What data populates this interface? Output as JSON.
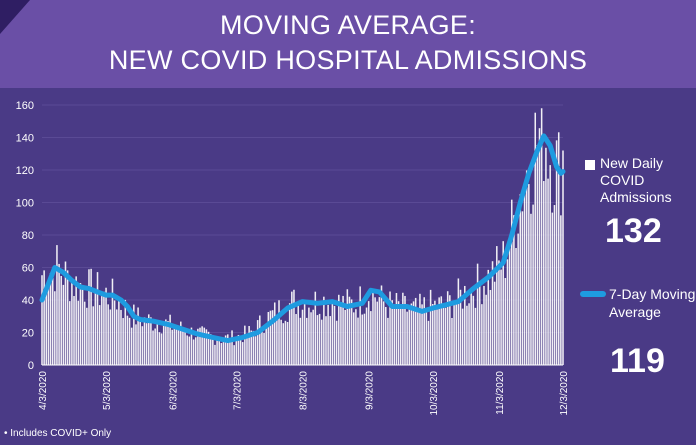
{
  "header": {
    "title_line1": "MOVING AVERAGE:",
    "title_line2": "NEW COVID HOSPITAL ADMISSIONS"
  },
  "legend": {
    "daily_label": [
      "New Daily",
      "COVID",
      "Admissions"
    ],
    "daily_value": "132",
    "avg_label": [
      "7-Day Moving",
      "Average"
    ],
    "avg_value": "119"
  },
  "footnote": "•     Includes COVID+ Only",
  "colors": {
    "bar": "#ffffff",
    "line": "#1e9be0",
    "background": "#4a3a86",
    "header": "#6a4fa6"
  },
  "chart_data": {
    "type": "bar",
    "start_date": "2020-04-03",
    "end_date": "2020-12-03",
    "ylim": [
      0,
      160
    ],
    "yticks": [
      0,
      20,
      40,
      60,
      80,
      100,
      120,
      140,
      160
    ],
    "xtick_labels": [
      "4/3/2020",
      "5/3/2020",
      "6/3/2020",
      "7/3/2020",
      "8/3/2020",
      "9/3/2020",
      "10/3/2020",
      "11/3/2020",
      "12/3/2020"
    ],
    "series": [
      {
        "name": "New Daily COVID Admissions",
        "type": "bar",
        "anchors": [
          [
            "2020-04-03",
            55
          ],
          [
            "2020-04-10",
            60
          ],
          [
            "2020-04-17",
            50
          ],
          [
            "2020-04-24",
            47
          ],
          [
            "2020-05-01",
            44
          ],
          [
            "2020-05-08",
            40
          ],
          [
            "2020-05-15",
            30
          ],
          [
            "2020-05-22",
            27
          ],
          [
            "2020-05-29",
            26
          ],
          [
            "2020-06-05",
            23
          ],
          [
            "2020-06-12",
            20
          ],
          [
            "2020-06-19",
            18
          ],
          [
            "2020-06-26",
            16
          ],
          [
            "2020-07-03",
            17
          ],
          [
            "2020-07-10",
            20
          ],
          [
            "2020-07-17",
            28
          ],
          [
            "2020-07-24",
            34
          ],
          [
            "2020-07-31",
            39
          ],
          [
            "2020-08-07",
            38
          ],
          [
            "2020-08-14",
            39
          ],
          [
            "2020-08-21",
            37
          ],
          [
            "2020-08-28",
            37
          ],
          [
            "2020-09-04",
            45
          ],
          [
            "2020-09-11",
            37
          ],
          [
            "2020-09-18",
            35
          ],
          [
            "2020-09-25",
            33
          ],
          [
            "2020-10-02",
            36
          ],
          [
            "2020-10-09",
            36
          ],
          [
            "2020-10-16",
            42
          ],
          [
            "2020-10-23",
            48
          ],
          [
            "2020-10-30",
            54
          ],
          [
            "2020-11-06",
            65
          ],
          [
            "2020-11-13",
            105
          ],
          [
            "2020-11-20",
            135
          ],
          [
            "2020-11-24",
            145
          ],
          [
            "2020-11-27",
            130
          ],
          [
            "2020-12-01",
            118
          ],
          [
            "2020-12-03",
            132
          ]
        ]
      },
      {
        "name": "7-Day Moving Average",
        "type": "line",
        "points": [
          [
            "2020-04-03",
            40
          ],
          [
            "2020-04-06",
            50
          ],
          [
            "2020-04-09",
            60
          ],
          [
            "2020-04-13",
            57
          ],
          [
            "2020-04-17",
            52
          ],
          [
            "2020-04-21",
            48
          ],
          [
            "2020-04-25",
            47
          ],
          [
            "2020-04-29",
            45
          ],
          [
            "2020-05-03",
            43
          ],
          [
            "2020-05-06",
            43
          ],
          [
            "2020-05-10",
            40
          ],
          [
            "2020-05-13",
            36
          ],
          [
            "2020-05-16",
            30
          ],
          [
            "2020-05-19",
            28
          ],
          [
            "2020-05-25",
            27
          ],
          [
            "2020-06-01",
            25
          ],
          [
            "2020-06-08",
            22
          ],
          [
            "2020-06-15",
            19
          ],
          [
            "2020-06-22",
            17
          ],
          [
            "2020-06-29",
            15
          ],
          [
            "2020-07-06",
            17
          ],
          [
            "2020-07-13",
            20
          ],
          [
            "2020-07-20",
            27
          ],
          [
            "2020-07-27",
            35
          ],
          [
            "2020-08-03",
            39
          ],
          [
            "2020-08-10",
            38
          ],
          [
            "2020-08-17",
            39
          ],
          [
            "2020-08-24",
            36
          ],
          [
            "2020-08-31",
            38
          ],
          [
            "2020-09-04",
            46
          ],
          [
            "2020-09-08",
            45
          ],
          [
            "2020-09-14",
            36
          ],
          [
            "2020-09-21",
            36
          ],
          [
            "2020-09-28",
            33
          ],
          [
            "2020-10-03",
            35
          ],
          [
            "2020-10-09",
            37
          ],
          [
            "2020-10-15",
            39
          ],
          [
            "2020-10-22",
            47
          ],
          [
            "2020-10-29",
            54
          ],
          [
            "2020-11-05",
            63
          ],
          [
            "2020-11-09",
            80
          ],
          [
            "2020-11-13",
            100
          ],
          [
            "2020-11-17",
            118
          ],
          [
            "2020-11-21",
            132
          ],
          [
            "2020-11-24",
            141
          ],
          [
            "2020-11-27",
            135
          ],
          [
            "2020-11-30",
            122
          ],
          [
            "2020-12-02",
            118
          ],
          [
            "2020-12-03",
            119
          ]
        ]
      }
    ]
  }
}
